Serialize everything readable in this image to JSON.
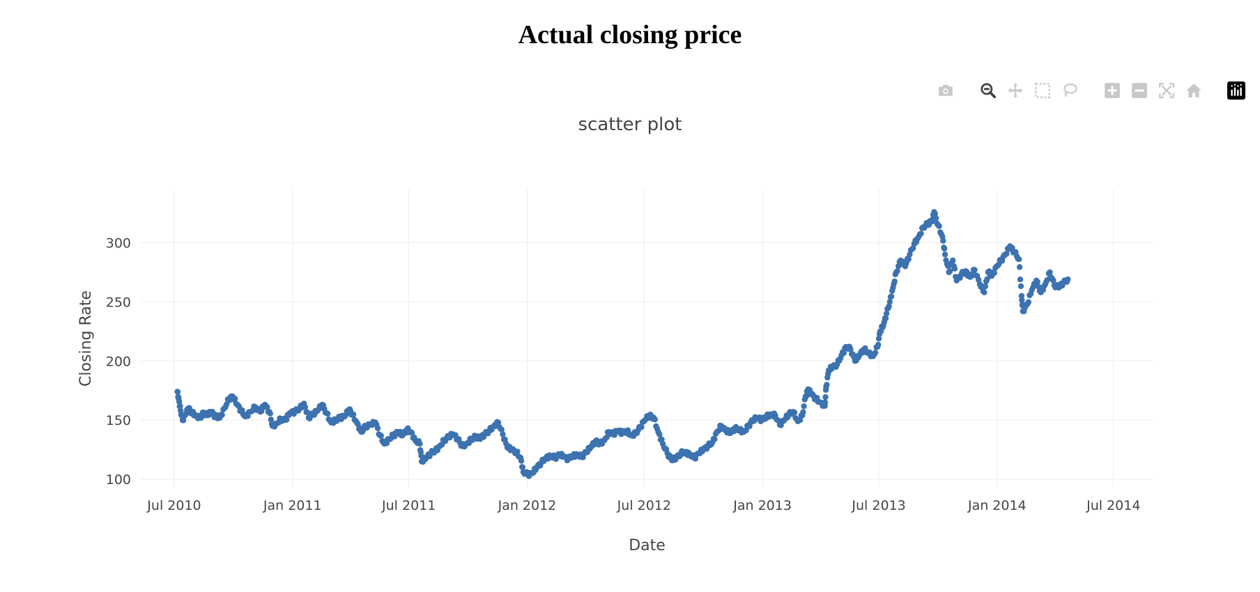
{
  "page": {
    "title": "Actual closing price"
  },
  "modebar": {
    "buttons": [
      {
        "name": "camera-icon",
        "tooltip": "Download plot as a png",
        "active": false
      },
      {
        "name": "zoom-icon",
        "tooltip": "Zoom",
        "active": true
      },
      {
        "name": "pan-icon",
        "tooltip": "Pan",
        "active": false
      },
      {
        "name": "box-select-icon",
        "tooltip": "Box Select",
        "active": false
      },
      {
        "name": "lasso-select-icon",
        "tooltip": "Lasso Select",
        "active": false
      },
      {
        "name": "zoom-in-icon",
        "tooltip": "Zoom in",
        "active": false
      },
      {
        "name": "zoom-out-icon",
        "tooltip": "Zoom out",
        "active": false
      },
      {
        "name": "autoscale-icon",
        "tooltip": "Autoscale",
        "active": false
      },
      {
        "name": "reset-axes-icon",
        "tooltip": "Reset axes",
        "active": false
      },
      {
        "name": "plotly-logo-icon",
        "tooltip": "Produced with Plotly",
        "active": false
      }
    ],
    "colors": {
      "inactive": "#c8c8c8",
      "active": "#444444",
      "logo_bg": "#000000"
    }
  },
  "chart_data": {
    "type": "scatter",
    "title": "scatter plot",
    "xlabel": "Date",
    "ylabel": "Closing Rate",
    "x_type": "date",
    "xlim": [
      "2010-05-10",
      "2014-09-01"
    ],
    "ylim": [
      93,
      345
    ],
    "x_ticks": [
      {
        "date": "2010-07-01",
        "label": "Jul 2010"
      },
      {
        "date": "2011-01-01",
        "label": "Jan 2011"
      },
      {
        "date": "2011-07-01",
        "label": "Jul 2011"
      },
      {
        "date": "2012-01-01",
        "label": "Jan 2012"
      },
      {
        "date": "2012-07-01",
        "label": "Jul 2012"
      },
      {
        "date": "2013-01-01",
        "label": "Jan 2013"
      },
      {
        "date": "2013-07-01",
        "label": "Jul 2013"
      },
      {
        "date": "2014-01-01",
        "label": "Jan 2014"
      },
      {
        "date": "2014-07-01",
        "label": "Jul 2014"
      }
    ],
    "y_ticks": [
      100,
      150,
      200,
      250,
      300
    ],
    "grid": true,
    "legend": false,
    "marker_color": "#3c72af",
    "series": [
      {
        "points": [
          [
            "2010-07-06",
            174
          ],
          [
            "2010-07-08",
            168
          ],
          [
            "2010-07-11",
            158
          ],
          [
            "2010-07-14",
            150
          ],
          [
            "2010-07-19",
            155
          ],
          [
            "2010-07-23",
            160
          ],
          [
            "2010-07-29",
            156
          ],
          [
            "2010-08-04",
            154
          ],
          [
            "2010-08-10",
            152
          ],
          [
            "2010-08-16",
            156
          ],
          [
            "2010-08-22",
            154
          ],
          [
            "2010-08-28",
            157
          ],
          [
            "2010-09-03",
            153
          ],
          [
            "2010-09-10",
            152
          ],
          [
            "2010-09-17",
            160
          ],
          [
            "2010-09-24",
            168
          ],
          [
            "2010-09-30",
            170
          ],
          [
            "2010-10-07",
            163
          ],
          [
            "2010-10-13",
            158
          ],
          [
            "2010-10-20",
            153
          ],
          [
            "2010-10-27",
            157
          ],
          [
            "2010-11-04",
            161
          ],
          [
            "2010-11-12",
            157
          ],
          [
            "2010-11-19",
            163
          ],
          [
            "2010-11-26",
            157
          ],
          [
            "2010-12-01",
            145
          ],
          [
            "2010-12-07",
            147
          ],
          [
            "2010-12-14",
            151
          ],
          [
            "2010-12-21",
            150
          ],
          [
            "2010-12-28",
            156
          ],
          [
            "2011-01-05",
            157
          ],
          [
            "2011-01-12",
            160
          ],
          [
            "2011-01-19",
            164
          ],
          [
            "2011-01-26",
            152
          ],
          [
            "2011-02-02",
            155
          ],
          [
            "2011-02-09",
            158
          ],
          [
            "2011-02-16",
            163
          ],
          [
            "2011-02-23",
            156
          ],
          [
            "2011-03-02",
            148
          ],
          [
            "2011-03-09",
            150
          ],
          [
            "2011-03-16",
            152
          ],
          [
            "2011-03-23",
            153
          ],
          [
            "2011-03-30",
            159
          ],
          [
            "2011-04-04",
            155
          ],
          [
            "2011-04-11",
            148
          ],
          [
            "2011-04-18",
            140
          ],
          [
            "2011-04-25",
            145
          ],
          [
            "2011-05-03",
            146
          ],
          [
            "2011-05-10",
            148
          ],
          [
            "2011-05-17",
            137
          ],
          [
            "2011-05-24",
            130
          ],
          [
            "2011-05-31",
            134
          ],
          [
            "2011-06-07",
            137
          ],
          [
            "2011-06-14",
            140
          ],
          [
            "2011-06-21",
            137
          ],
          [
            "2011-06-28",
            142
          ],
          [
            "2011-07-04",
            140
          ],
          [
            "2011-07-11",
            133
          ],
          [
            "2011-07-18",
            130
          ],
          [
            "2011-07-21",
            115
          ],
          [
            "2011-07-28",
            118
          ],
          [
            "2011-08-04",
            122
          ],
          [
            "2011-08-11",
            124
          ],
          [
            "2011-08-18",
            128
          ],
          [
            "2011-08-25",
            133
          ],
          [
            "2011-09-01",
            136
          ],
          [
            "2011-09-08",
            138
          ],
          [
            "2011-09-15",
            134
          ],
          [
            "2011-09-22",
            128
          ],
          [
            "2011-09-29",
            130
          ],
          [
            "2011-10-06",
            134
          ],
          [
            "2011-10-13",
            136
          ],
          [
            "2011-10-20",
            134
          ],
          [
            "2011-10-27",
            138
          ],
          [
            "2011-11-03",
            141
          ],
          [
            "2011-11-10",
            145
          ],
          [
            "2011-11-17",
            148
          ],
          [
            "2011-11-24",
            138
          ],
          [
            "2011-12-01",
            127
          ],
          [
            "2011-12-08",
            125
          ],
          [
            "2011-12-15",
            123
          ],
          [
            "2011-12-22",
            118
          ],
          [
            "2011-12-26",
            106
          ],
          [
            "2012-01-02",
            104
          ],
          [
            "2012-01-09",
            105
          ],
          [
            "2012-01-16",
            110
          ],
          [
            "2012-01-23",
            114
          ],
          [
            "2012-01-30",
            118
          ],
          [
            "2012-02-06",
            120
          ],
          [
            "2012-02-13",
            118
          ],
          [
            "2012-02-20",
            121
          ],
          [
            "2012-02-27",
            119
          ],
          [
            "2012-03-05",
            117
          ],
          [
            "2012-03-12",
            120
          ],
          [
            "2012-03-19",
            121
          ],
          [
            "2012-03-26",
            119
          ],
          [
            "2012-04-02",
            123
          ],
          [
            "2012-04-09",
            127
          ],
          [
            "2012-04-16",
            132
          ],
          [
            "2012-04-23",
            130
          ],
          [
            "2012-04-30",
            133
          ],
          [
            "2012-05-07",
            140
          ],
          [
            "2012-05-14",
            138
          ],
          [
            "2012-05-21",
            141
          ],
          [
            "2012-05-28",
            139
          ],
          [
            "2012-06-04",
            141
          ],
          [
            "2012-06-11",
            137
          ],
          [
            "2012-06-18",
            139
          ],
          [
            "2012-06-25",
            144
          ],
          [
            "2012-07-02",
            150
          ],
          [
            "2012-07-09",
            154
          ],
          [
            "2012-07-16",
            152
          ],
          [
            "2012-07-23",
            140
          ],
          [
            "2012-07-30",
            130
          ],
          [
            "2012-08-06",
            122
          ],
          [
            "2012-08-13",
            116
          ],
          [
            "2012-08-20",
            118
          ],
          [
            "2012-08-27",
            122
          ],
          [
            "2012-09-03",
            123
          ],
          [
            "2012-09-10",
            121
          ],
          [
            "2012-09-17",
            118
          ],
          [
            "2012-09-24",
            122
          ],
          [
            "2012-10-01",
            125
          ],
          [
            "2012-10-08",
            128
          ],
          [
            "2012-10-15",
            131
          ],
          [
            "2012-10-22",
            140
          ],
          [
            "2012-10-29",
            145
          ],
          [
            "2012-11-05",
            141
          ],
          [
            "2012-11-12",
            139
          ],
          [
            "2012-11-19",
            143
          ],
          [
            "2012-11-26",
            142
          ],
          [
            "2012-12-03",
            140
          ],
          [
            "2012-12-10",
            145
          ],
          [
            "2012-12-17",
            150
          ],
          [
            "2012-12-24",
            152
          ],
          [
            "2012-12-31",
            150
          ],
          [
            "2013-01-07",
            153
          ],
          [
            "2013-01-14",
            155
          ],
          [
            "2013-01-21",
            154
          ],
          [
            "2013-01-28",
            146
          ],
          [
            "2013-02-04",
            150
          ],
          [
            "2013-02-11",
            155
          ],
          [
            "2013-02-18",
            157
          ],
          [
            "2013-02-25",
            149
          ],
          [
            "2013-03-04",
            154
          ],
          [
            "2013-03-09",
            170
          ],
          [
            "2013-03-13",
            176
          ],
          [
            "2013-03-18",
            172
          ],
          [
            "2013-03-25",
            168
          ],
          [
            "2013-04-01",
            165
          ],
          [
            "2013-04-08",
            162
          ],
          [
            "2013-04-10",
            178
          ],
          [
            "2013-04-14",
            192
          ],
          [
            "2013-04-20",
            195
          ],
          [
            "2013-04-27",
            197
          ],
          [
            "2013-05-04",
            205
          ],
          [
            "2013-05-11",
            212
          ],
          [
            "2013-05-18",
            210
          ],
          [
            "2013-05-25",
            200
          ],
          [
            "2013-06-01",
            205
          ],
          [
            "2013-06-08",
            210
          ],
          [
            "2013-06-15",
            207
          ],
          [
            "2013-06-22",
            204
          ],
          [
            "2013-06-29",
            212
          ],
          [
            "2013-07-03",
            225
          ],
          [
            "2013-07-08",
            230
          ],
          [
            "2013-07-13",
            240
          ],
          [
            "2013-07-18",
            250
          ],
          [
            "2013-07-23",
            262
          ],
          [
            "2013-07-28",
            275
          ],
          [
            "2013-08-04",
            285
          ],
          [
            "2013-08-11",
            280
          ],
          [
            "2013-08-18",
            290
          ],
          [
            "2013-08-25",
            299
          ],
          [
            "2013-09-01",
            305
          ],
          [
            "2013-09-08",
            313
          ],
          [
            "2013-09-15",
            316
          ],
          [
            "2013-09-22",
            318
          ],
          [
            "2013-09-25",
            326
          ],
          [
            "2013-10-01",
            315
          ],
          [
            "2013-10-08",
            305
          ],
          [
            "2013-10-12",
            290
          ],
          [
            "2013-10-18",
            275
          ],
          [
            "2013-10-24",
            285
          ],
          [
            "2013-10-30",
            268
          ],
          [
            "2013-11-06",
            273
          ],
          [
            "2013-11-13",
            276
          ],
          [
            "2013-11-20",
            271
          ],
          [
            "2013-11-27",
            277
          ],
          [
            "2013-12-05",
            265
          ],
          [
            "2013-12-12",
            258
          ],
          [
            "2013-12-18",
            275
          ],
          [
            "2013-12-24",
            272
          ],
          [
            "2013-12-31",
            280
          ],
          [
            "2014-01-07",
            285
          ],
          [
            "2014-01-14",
            290
          ],
          [
            "2014-01-21",
            297
          ],
          [
            "2014-01-28",
            292
          ],
          [
            "2014-02-04",
            286
          ],
          [
            "2014-02-08",
            255
          ],
          [
            "2014-02-10",
            242
          ],
          [
            "2014-02-17",
            248
          ],
          [
            "2014-02-24",
            260
          ],
          [
            "2014-03-03",
            268
          ],
          [
            "2014-03-10",
            258
          ],
          [
            "2014-03-17",
            265
          ],
          [
            "2014-03-24",
            275
          ],
          [
            "2014-03-31",
            264
          ],
          [
            "2014-04-07",
            262
          ],
          [
            "2014-04-14",
            266
          ],
          [
            "2014-04-21",
            269
          ]
        ]
      }
    ]
  }
}
